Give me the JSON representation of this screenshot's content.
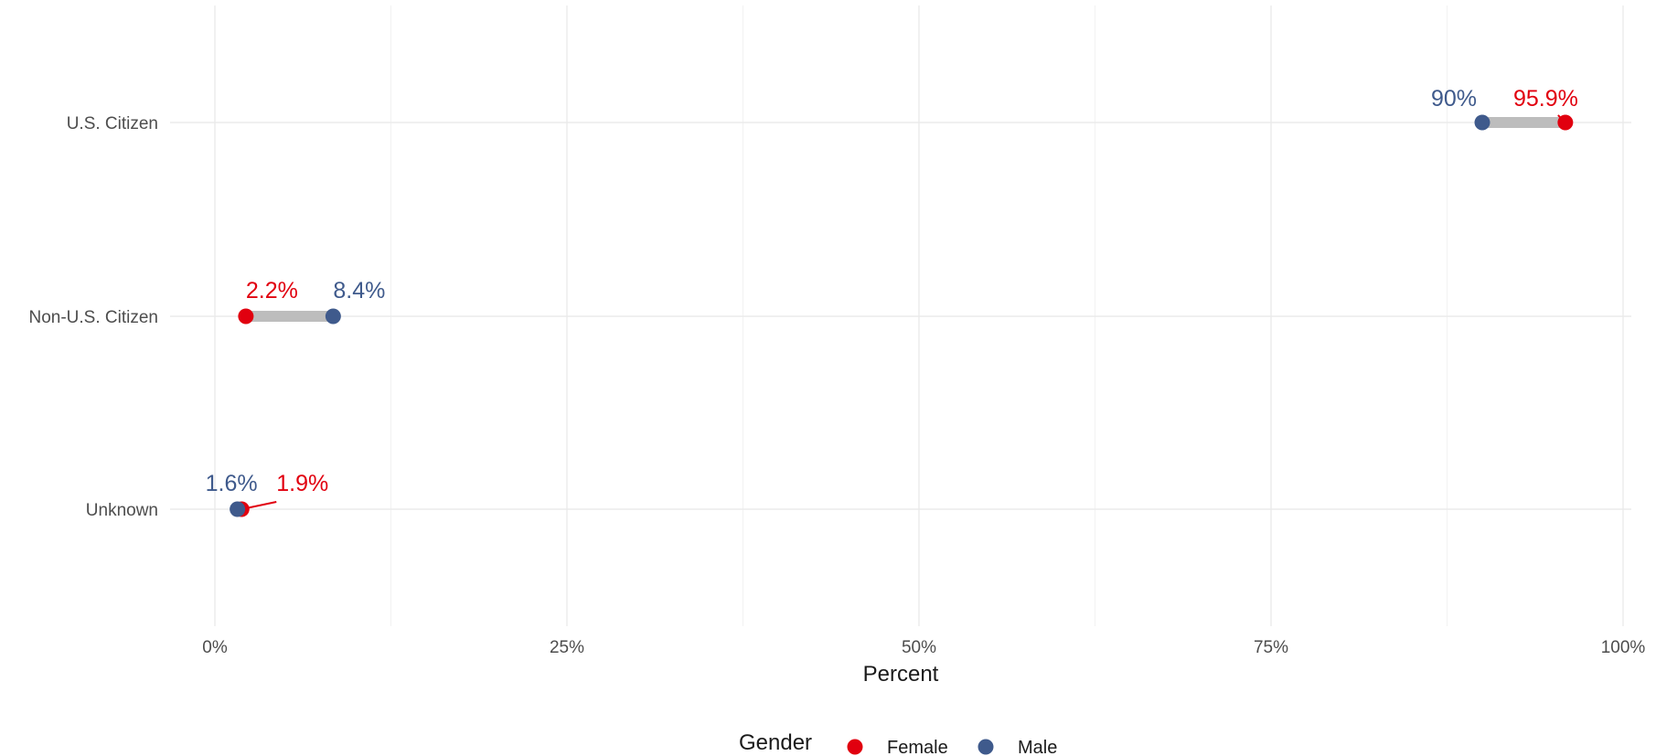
{
  "chart_data": {
    "type": "dumbbell",
    "categories": [
      "U.S. Citizen",
      "Non-U.S. Citizen",
      "Unknown"
    ],
    "series": [
      {
        "name": "Female",
        "color": "#e1000f",
        "values": [
          95.9,
          2.2,
          1.9
        ],
        "labels": [
          "95.9%",
          "2.2%",
          "1.9%"
        ]
      },
      {
        "name": "Male",
        "color": "#3f5a8c",
        "values": [
          90,
          8.4,
          1.6
        ],
        "labels": [
          "90%",
          "8.4%",
          "1.6%"
        ]
      }
    ],
    "xlabel": "Percent",
    "ylabel": "",
    "xlim": [
      0,
      100
    ],
    "x_ticks": [
      0,
      25,
      50,
      75,
      100
    ],
    "x_tick_labels": [
      "0%",
      "25%",
      "50%",
      "75%",
      "100%"
    ],
    "connector_color": "#bdbdbd",
    "grid": true,
    "legend": {
      "title": "Gender",
      "position": "bottom",
      "entries": [
        "Female",
        "Male"
      ]
    }
  }
}
